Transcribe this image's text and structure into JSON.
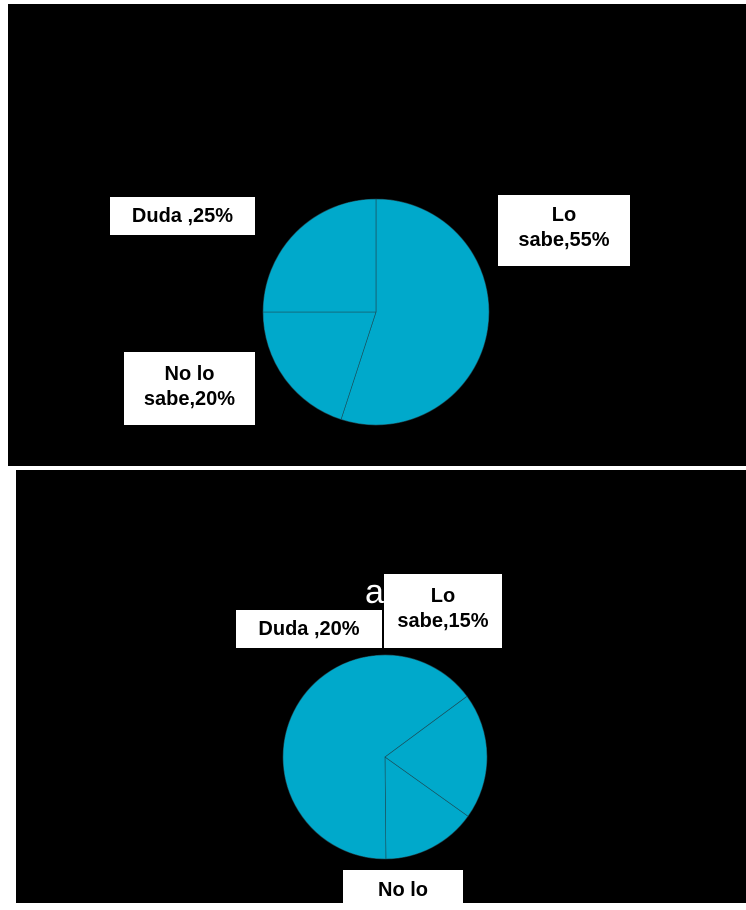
{
  "chart_data": [
    {
      "type": "pie",
      "title": "",
      "slices": [
        {
          "label": "Lo sabe,55%",
          "line1": "Lo",
          "line2": "sabe,55%",
          "value": 55
        },
        {
          "label": "No lo sabe,20%",
          "line1": "No lo",
          "line2": "sabe,20%",
          "value": 20
        },
        {
          "label": "Duda ,25%",
          "line1": "Duda ,25%",
          "line2": "",
          "value": 25
        }
      ],
      "color": "#00A9CB"
    },
    {
      "type": "pie",
      "title_fragment": "a?",
      "slices": [
        {
          "label": "Lo sabe,15%",
          "line1": "Lo",
          "line2": "sabe,15%",
          "value": 15
        },
        {
          "label": "No lo",
          "line1": "No lo",
          "line2": "",
          "value": 65
        },
        {
          "label": "Duda ,20%",
          "line1": "Duda ,20%",
          "line2": "",
          "value": 20
        }
      ],
      "color": "#00A9CB"
    }
  ]
}
